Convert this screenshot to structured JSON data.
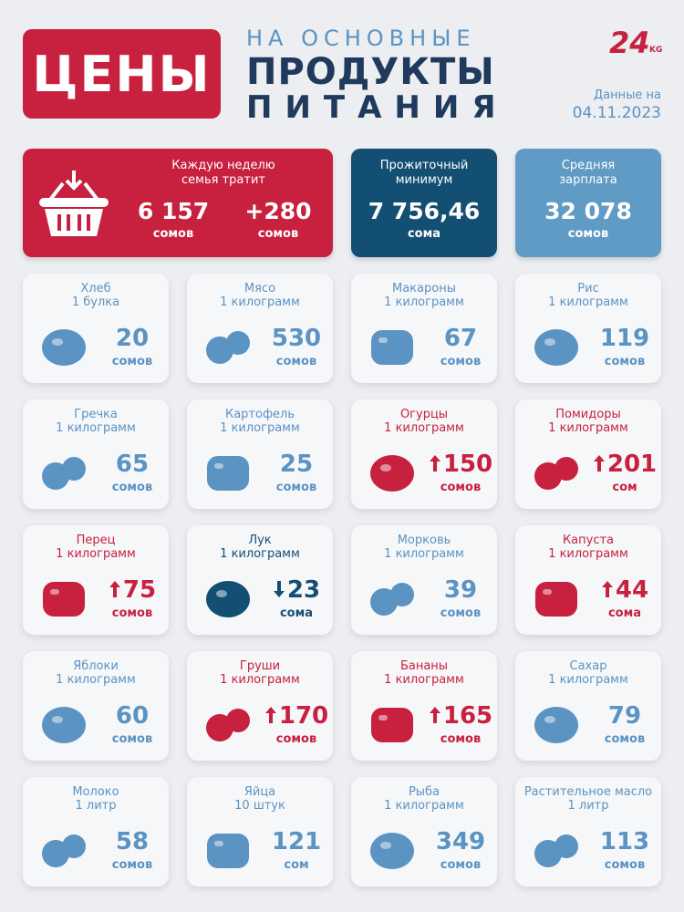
{
  "header": {
    "title": "ЦЕНЫ",
    "subtitle": [
      "НА ОСНОВНЫЕ",
      "ПРОДУКТЫ",
      "ПИТАНИЯ"
    ],
    "logo": {
      "number": "24",
      "suffix": "KG"
    },
    "date_label": "Данные на",
    "date": "04.11.2023"
  },
  "summary": [
    {
      "label": [
        "Каждую неделю",
        "семья тратит"
      ],
      "values": [
        {
          "amount": "6 157",
          "unit": "сомов"
        },
        {
          "amount": "+280",
          "unit": "сомов"
        }
      ]
    },
    {
      "label": [
        "Прожиточный",
        "минимум"
      ],
      "values": [
        {
          "amount": "7 756,46",
          "unit": "сома"
        }
      ]
    },
    {
      "label": [
        "Средняя",
        "зарплата"
      ],
      "values": [
        {
          "amount": "32 078",
          "unit": "сомов"
        }
      ]
    }
  ],
  "items": [
    {
      "name": "Хлеб",
      "quantity": "1 булка",
      "price": 20,
      "unit": "сомов",
      "trend": null
    },
    {
      "name": "Мясо",
      "quantity": "1 килограмм",
      "price": 530,
      "unit": "сомов",
      "trend": null
    },
    {
      "name": "Макароны",
      "quantity": "1 килограмм",
      "price": 67,
      "unit": "сомов",
      "trend": null
    },
    {
      "name": "Рис",
      "quantity": "1 килограмм",
      "price": 119,
      "unit": "сомов",
      "trend": null
    },
    {
      "name": "Гречка",
      "quantity": "1 килограмм",
      "price": 65,
      "unit": "сомов",
      "trend": null
    },
    {
      "name": "Картофель",
      "quantity": "1 килограмм",
      "price": 25,
      "unit": "сомов",
      "trend": null
    },
    {
      "name": "Огурцы",
      "quantity": "1 килограмм",
      "price": 150,
      "unit": "сомов",
      "trend": "up"
    },
    {
      "name": "Помидоры",
      "quantity": "1 килограмм",
      "price": 201,
      "unit": "сом",
      "trend": "up"
    },
    {
      "name": "Перец",
      "quantity": "1 килограмм",
      "price": 75,
      "unit": "сомов",
      "trend": "up"
    },
    {
      "name": "Лук",
      "quantity": "1 килограмм",
      "price": 23,
      "unit": "сома",
      "trend": "down"
    },
    {
      "name": "Морковь",
      "quantity": "1 килограмм",
      "price": 39,
      "unit": "сомов",
      "trend": null
    },
    {
      "name": "Капуста",
      "quantity": "1 килограмм",
      "price": 44,
      "unit": "сома",
      "trend": "up"
    },
    {
      "name": "Яблоки",
      "quantity": "1 килограмм",
      "price": 60,
      "unit": "сомов",
      "trend": null
    },
    {
      "name": "Груши",
      "quantity": "1 килограмм",
      "price": 170,
      "unit": "сомов",
      "trend": "up"
    },
    {
      "name": "Бананы",
      "quantity": "1 килограмм",
      "price": 165,
      "unit": "сомов",
      "trend": "up"
    },
    {
      "name": "Сахар",
      "quantity": "1 килограмм",
      "price": 79,
      "unit": "сомов",
      "trend": null
    },
    {
      "name": "Молоко",
      "quantity": "1 литр",
      "price": 58,
      "unit": "сомов",
      "trend": null
    },
    {
      "name": "Яйца",
      "quantity": "10 штук",
      "price": 121,
      "unit": "сом",
      "trend": null
    },
    {
      "name": "Рыба",
      "quantity": "1 килограмм",
      "price": 349,
      "unit": "сомов",
      "trend": null
    },
    {
      "name": "Растительное масло",
      "quantity": "1 литр",
      "price": 113,
      "unit": "сомов",
      "trend": null
    }
  ]
}
